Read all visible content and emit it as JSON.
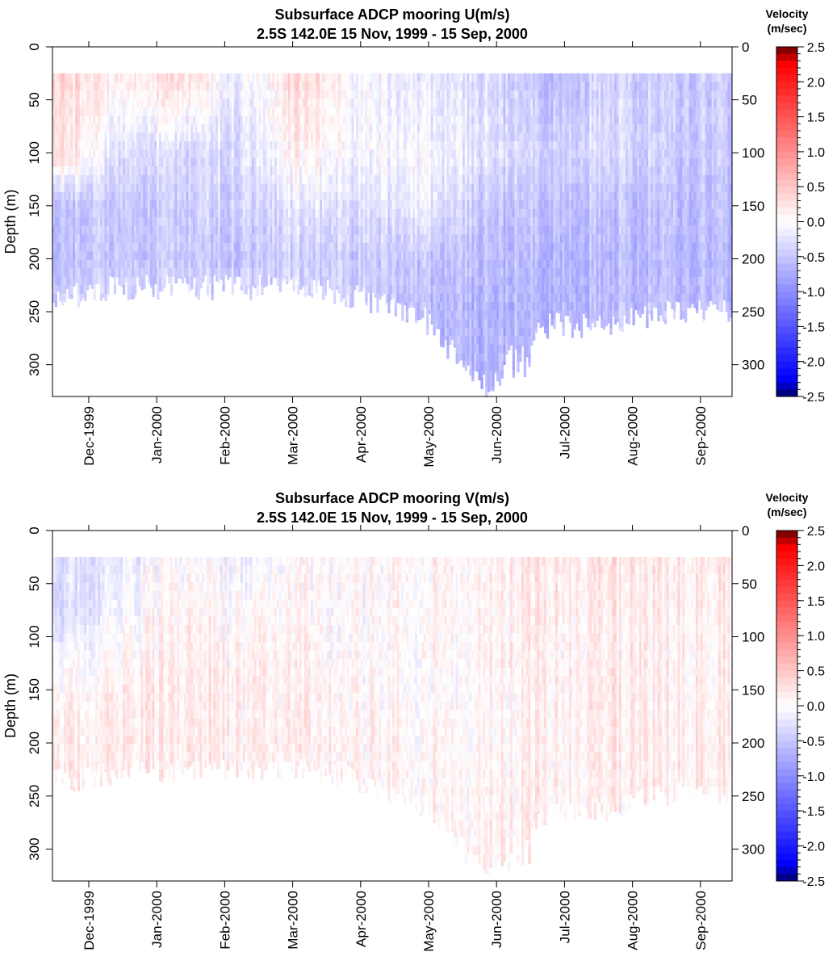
{
  "chart_data": [
    {
      "type": "heatmap",
      "title": "Subsurface ADCP mooring U(m/s)",
      "subtitle": "2.5S 142.0E      15 Nov, 1999 - 15 Sep, 2000",
      "xlabel": "",
      "ylabel": "Depth (m)",
      "x_ticks": [
        "Dec-1999",
        "Jan-2000",
        "Feb-2000",
        "Mar-2000",
        "Apr-2000",
        "May-2000",
        "Jun-2000",
        "Jul-2000",
        "Aug-2000",
        "Sep-2000"
      ],
      "x_range": [
        "15 Nov, 1999",
        "15 Sep, 2000"
      ],
      "y_ticks": [
        0,
        50,
        100,
        150,
        200,
        250,
        300
      ],
      "ylim": [
        0,
        330
      ],
      "y_inverted": true,
      "top_depth": 25,
      "segments": [
        {
          "month": "Nov-Dec 1999",
          "bottom_depth": 235,
          "profile": [
            [
              30,
              0.4
            ],
            [
              110,
              0.35
            ],
            [
              125,
              -0.1
            ],
            [
              150,
              -0.5
            ],
            [
              200,
              -0.55
            ],
            [
              230,
              -0.45
            ]
          ]
        },
        {
          "month": "Dec 1999 - Jan 2000",
          "bottom_depth": 225,
          "profile": [
            [
              30,
              0.1
            ],
            [
              70,
              -0.1
            ],
            [
              150,
              -0.5
            ],
            [
              200,
              -0.5
            ],
            [
              225,
              -0.4
            ]
          ]
        },
        {
          "month": "Jan 2000",
          "bottom_depth": 225,
          "profile": [
            [
              30,
              0.35
            ],
            [
              60,
              0.1
            ],
            [
              100,
              -0.3
            ],
            [
              150,
              -0.4
            ],
            [
              200,
              -0.45
            ],
            [
              225,
              -0.4
            ]
          ]
        },
        {
          "month": "Feb 2000",
          "bottom_depth": 225,
          "profile": [
            [
              30,
              -0.15
            ],
            [
              100,
              -0.3
            ],
            [
              150,
              -0.4
            ],
            [
              200,
              -0.5
            ],
            [
              225,
              -0.4
            ]
          ]
        },
        {
          "month": "Mar 2000",
          "bottom_depth": 220,
          "profile": [
            [
              30,
              0.35
            ],
            [
              100,
              0.15
            ],
            [
              150,
              -0.2
            ],
            [
              200,
              -0.4
            ],
            [
              220,
              -0.35
            ]
          ]
        },
        {
          "month": "Apr 2000",
          "bottom_depth": 235,
          "profile": [
            [
              30,
              -0.05
            ],
            [
              100,
              -0.1
            ],
            [
              150,
              -0.3
            ],
            [
              200,
              -0.45
            ],
            [
              235,
              -0.45
            ]
          ]
        },
        {
          "month": "May 2000",
          "bottom_depth": 255,
          "profile": [
            [
              30,
              -0.2
            ],
            [
              100,
              -0.05
            ],
            [
              150,
              -0.15
            ],
            [
              200,
              -0.5
            ],
            [
              250,
              -0.6
            ]
          ]
        },
        {
          "month": "Late May - Jun 2000",
          "bottom_depth": 320,
          "profile": [
            [
              30,
              -0.3
            ],
            [
              100,
              -0.25
            ],
            [
              150,
              -0.5
            ],
            [
              250,
              -0.65
            ],
            [
              320,
              -0.65
            ]
          ]
        },
        {
          "month": "Jul 2000",
          "bottom_depth": 260,
          "profile": [
            [
              30,
              -0.55
            ],
            [
              100,
              -0.35
            ],
            [
              150,
              -0.5
            ],
            [
              200,
              -0.6
            ],
            [
              260,
              -0.6
            ]
          ]
        },
        {
          "month": "Aug 2000",
          "bottom_depth": 260,
          "profile": [
            [
              30,
              -0.35
            ],
            [
              100,
              -0.3
            ],
            [
              150,
              -0.5
            ],
            [
              200,
              -0.6
            ],
            [
              260,
              -0.55
            ]
          ]
        },
        {
          "month": "Sep 2000",
          "bottom_depth": 245,
          "profile": [
            [
              30,
              -0.45
            ],
            [
              100,
              -0.45
            ],
            [
              150,
              -0.55
            ],
            [
              200,
              -0.6
            ],
            [
              245,
              -0.55
            ]
          ]
        }
      ],
      "colorbar": {
        "title": [
          "Velocity",
          "(m/sec)"
        ],
        "range": [
          -2.5,
          2.5
        ],
        "ticks": [
          "2.5",
          "2.0",
          "1.5",
          "1.0",
          "0.5",
          "0.0",
          "-0.5",
          "-1.0",
          "-1.5",
          "-2.0",
          "-2.5"
        ],
        "colors": {
          "min": "#000066",
          "negative": "#0000ff",
          "zero": "#ffffff",
          "positive": "#ff0000",
          "max": "#660000"
        }
      }
    },
    {
      "type": "heatmap",
      "title": "Subsurface ADCP mooring V(m/s)",
      "subtitle": "2.5S 142.0E      15 Nov, 1999 - 15 Sep, 2000",
      "xlabel": "",
      "ylabel": "Depth (m)",
      "x_ticks": [
        "Dec-1999",
        "Jan-2000",
        "Feb-2000",
        "Mar-2000",
        "Apr-2000",
        "May-2000",
        "Jun-2000",
        "Jul-2000",
        "Aug-2000",
        "Sep-2000"
      ],
      "x_range": [
        "15 Nov, 1999",
        "15 Sep, 2000"
      ],
      "y_ticks": [
        0,
        50,
        100,
        150,
        200,
        250,
        300
      ],
      "ylim": [
        0,
        330
      ],
      "y_inverted": true,
      "top_depth": 25,
      "segments": [
        {
          "month": "Nov-Dec 1999",
          "bottom_depth": 235,
          "profile": [
            [
              30,
              -0.3
            ],
            [
              80,
              -0.35
            ],
            [
              120,
              -0.1
            ],
            [
              150,
              0.05
            ],
            [
              200,
              0.15
            ],
            [
              230,
              0.15
            ]
          ]
        },
        {
          "month": "Dec 1999 - Jan 2000",
          "bottom_depth": 225,
          "profile": [
            [
              30,
              -0.2
            ],
            [
              80,
              -0.05
            ],
            [
              150,
              0.15
            ],
            [
              200,
              0.2
            ],
            [
              225,
              0.2
            ]
          ]
        },
        {
          "month": "Jan 2000",
          "bottom_depth": 225,
          "profile": [
            [
              30,
              0.05
            ],
            [
              100,
              0.15
            ],
            [
              150,
              0.2
            ],
            [
              200,
              0.2
            ],
            [
              225,
              0.15
            ]
          ]
        },
        {
          "month": "Feb 2000",
          "bottom_depth": 225,
          "profile": [
            [
              30,
              -0.1
            ],
            [
              100,
              0.1
            ],
            [
              150,
              0.15
            ],
            [
              200,
              0.15
            ],
            [
              225,
              0.15
            ]
          ]
        },
        {
          "month": "Mar 2000",
          "bottom_depth": 220,
          "profile": [
            [
              30,
              0.0
            ],
            [
              100,
              0.1
            ],
            [
              150,
              0.1
            ],
            [
              200,
              0.15
            ],
            [
              220,
              0.1
            ]
          ]
        },
        {
          "month": "Apr 2000",
          "bottom_depth": 235,
          "profile": [
            [
              30,
              0.05
            ],
            [
              100,
              0.0
            ],
            [
              150,
              0.05
            ],
            [
              200,
              0.1
            ],
            [
              235,
              0.1
            ]
          ]
        },
        {
          "month": "May 2000",
          "bottom_depth": 255,
          "profile": [
            [
              30,
              0.1
            ],
            [
              100,
              0.1
            ],
            [
              150,
              0.05
            ],
            [
              200,
              0.1
            ],
            [
              250,
              0.1
            ]
          ]
        },
        {
          "month": "Late May - Jun 2000",
          "bottom_depth": 320,
          "profile": [
            [
              30,
              0.1
            ],
            [
              100,
              0.1
            ],
            [
              150,
              0.05
            ],
            [
              250,
              0.1
            ],
            [
              320,
              0.15
            ]
          ]
        },
        {
          "month": "Jul 2000",
          "bottom_depth": 260,
          "profile": [
            [
              30,
              0.2
            ],
            [
              100,
              0.15
            ],
            [
              150,
              0.15
            ],
            [
              200,
              0.15
            ],
            [
              260,
              0.15
            ]
          ]
        },
        {
          "month": "Aug 2000",
          "bottom_depth": 260,
          "profile": [
            [
              30,
              0.25
            ],
            [
              100,
              0.15
            ],
            [
              150,
              0.2
            ],
            [
              200,
              0.2
            ],
            [
              260,
              0.15
            ]
          ]
        },
        {
          "month": "Sep 2000",
          "bottom_depth": 245,
          "profile": [
            [
              30,
              0.2
            ],
            [
              100,
              0.15
            ],
            [
              150,
              0.15
            ],
            [
              200,
              0.2
            ],
            [
              245,
              0.15
            ]
          ]
        }
      ],
      "colorbar": {
        "title": [
          "Velocity",
          "(m/sec)"
        ],
        "range": [
          -2.5,
          2.5
        ],
        "ticks": [
          "2.5",
          "2.0",
          "1.5",
          "1.0",
          "0.5",
          "0.0",
          "-0.5",
          "-1.0",
          "-1.5",
          "-2.0",
          "-2.5"
        ],
        "colors": {
          "min": "#000066",
          "negative": "#0000ff",
          "zero": "#ffffff",
          "positive": "#ff0000",
          "max": "#660000"
        }
      }
    }
  ]
}
